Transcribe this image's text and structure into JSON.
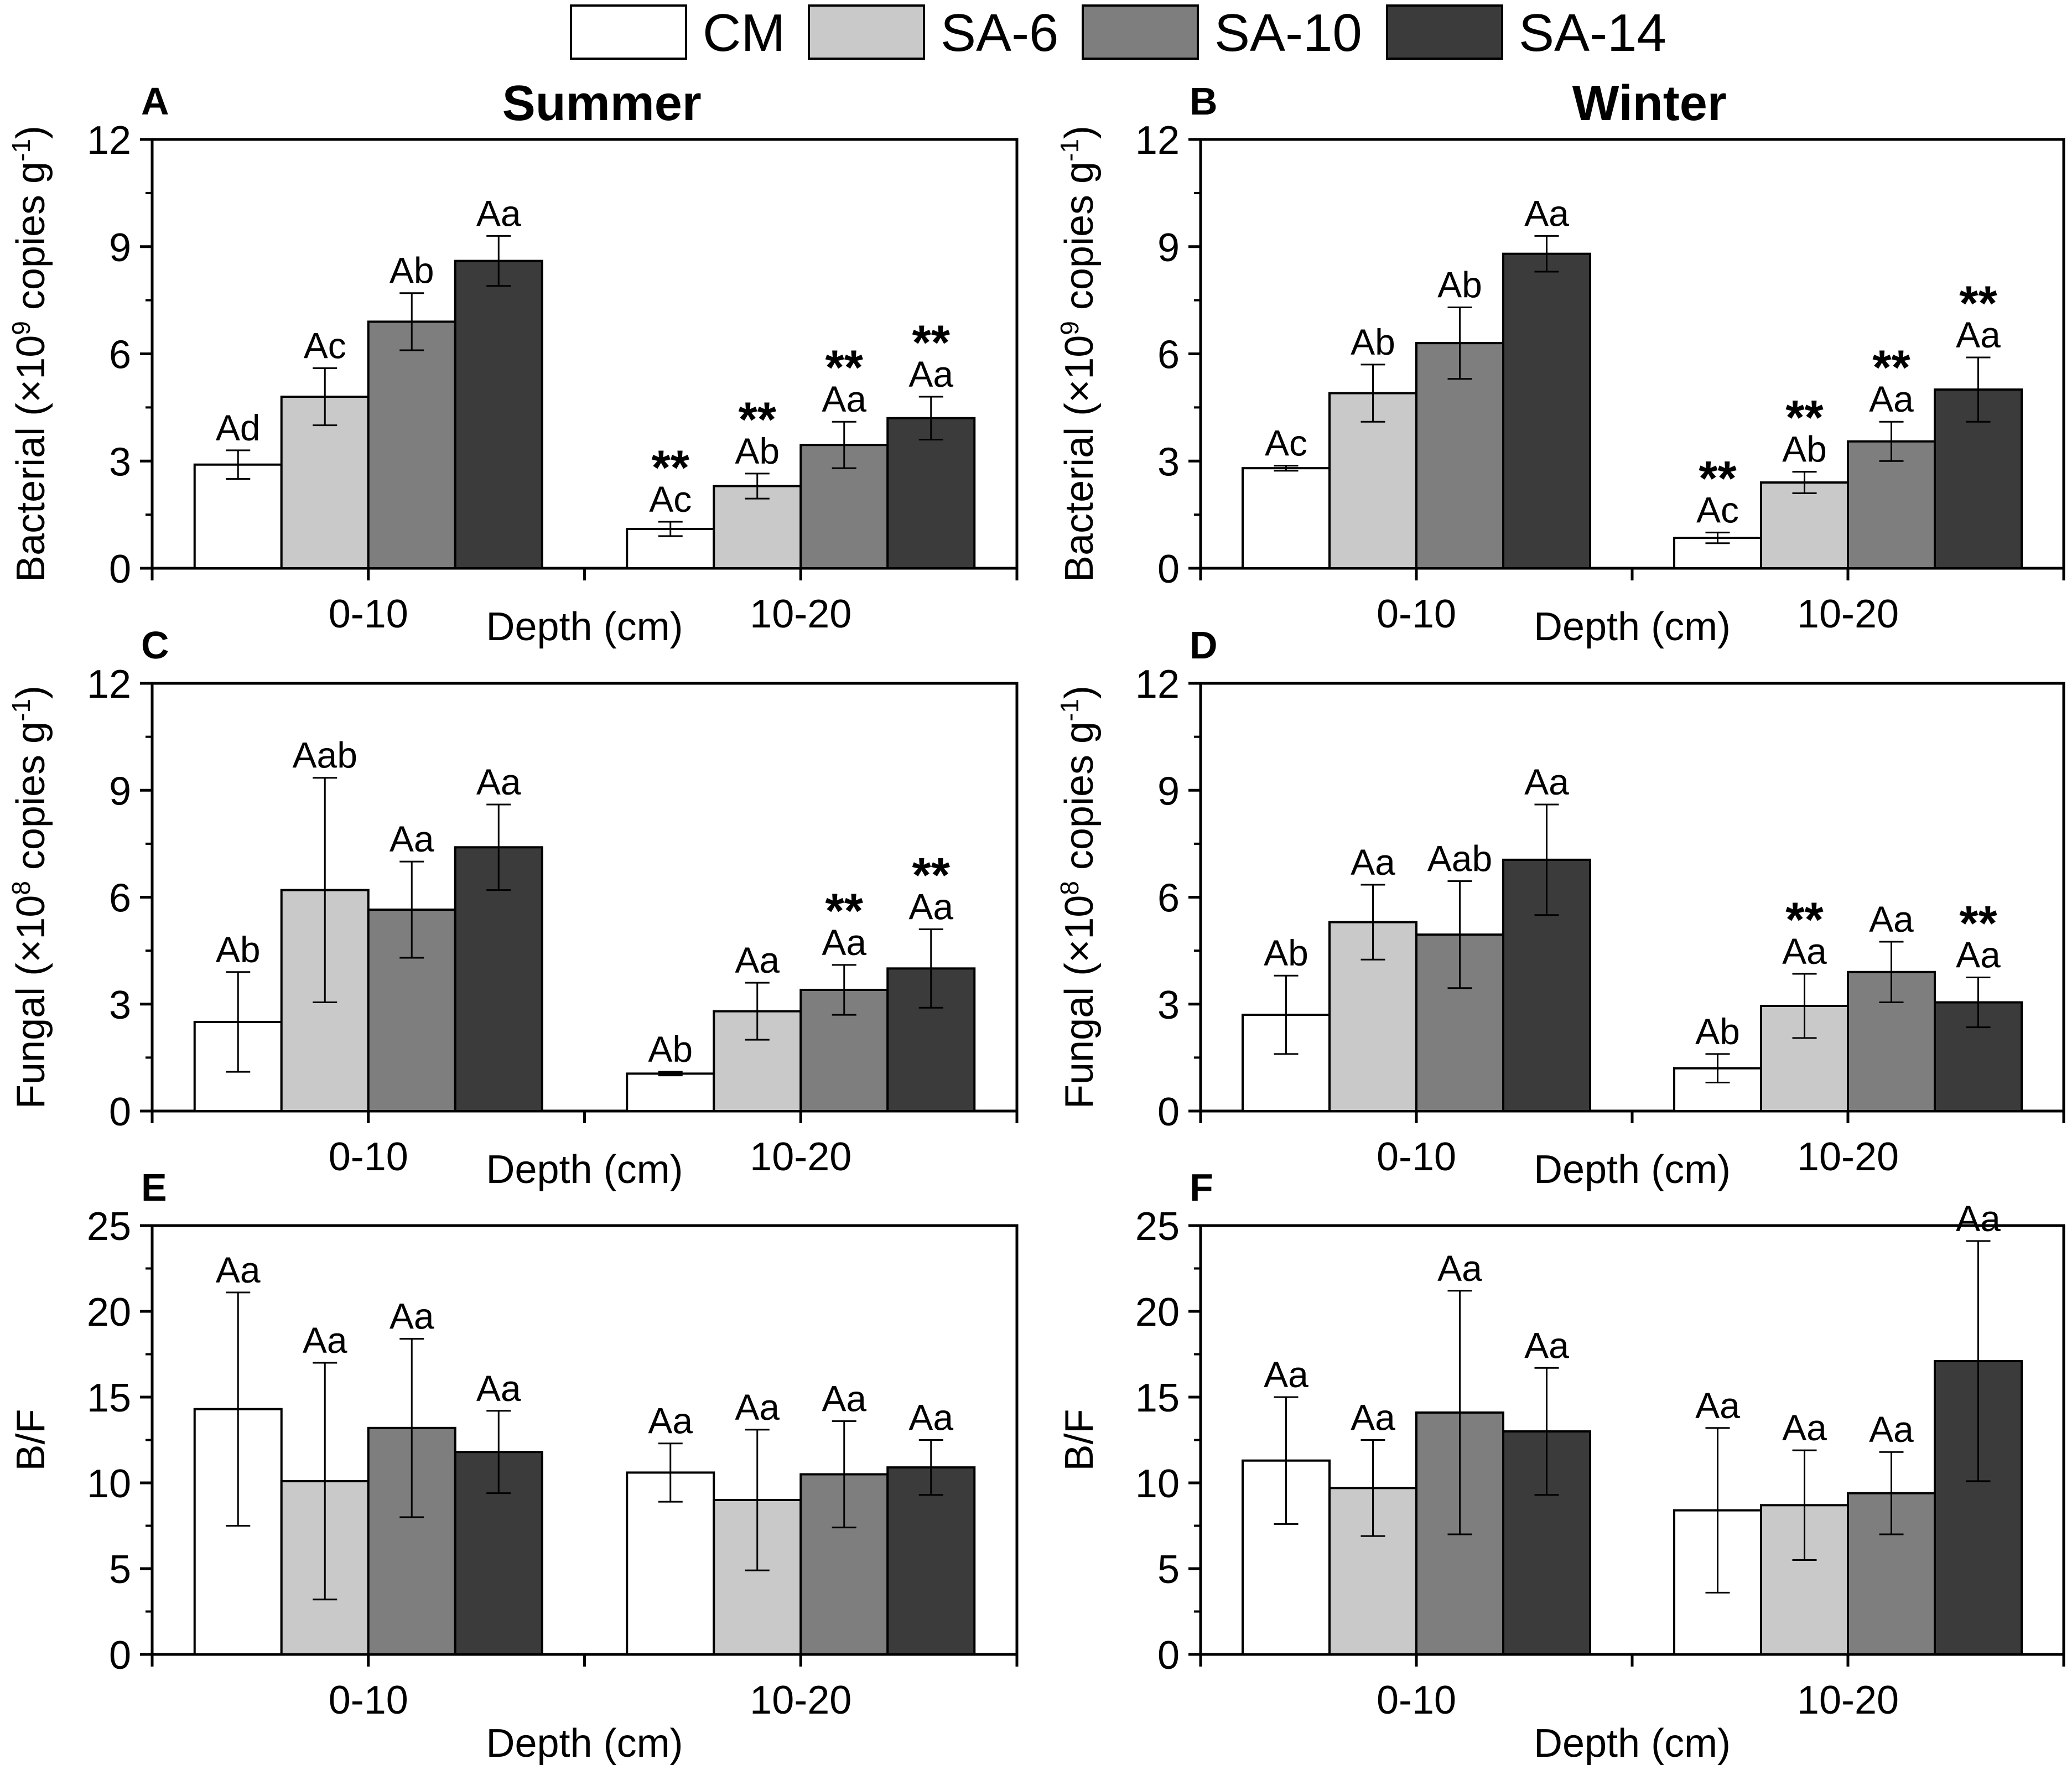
{
  "legend": [
    {
      "label": "CM",
      "color": "#ffffff"
    },
    {
      "label": "SA-6",
      "color": "#c9c9c9"
    },
    {
      "label": "SA-10",
      "color": "#7e7e7e"
    },
    {
      "label": "SA-14",
      "color": "#3b3b3b"
    }
  ],
  "chart_data": [
    {
      "id": "A",
      "panel_label": "A",
      "type": "bar",
      "title": "Summer",
      "ylabel_main": "Bacterial (×10",
      "ylabel_sup": "9",
      "ylabel_mid": " copies g",
      "ylabel_sup2": "-1",
      "ylabel_end": ")",
      "xlabel": "Depth (cm)",
      "xlabel_pos": "inline",
      "ylim": [
        0,
        12
      ],
      "yticks": [
        "0",
        "3",
        "6",
        "9",
        "12"
      ],
      "categories": [
        "0-10",
        "10-20"
      ],
      "series": [
        {
          "name": "CM",
          "values": [
            2.9,
            1.1
          ],
          "errors": [
            0.4,
            0.2
          ],
          "labels": [
            "Ad",
            "Ac"
          ],
          "stars": [
            "",
            "**"
          ]
        },
        {
          "name": "SA-6",
          "values": [
            4.8,
            2.3
          ],
          "errors": [
            0.8,
            0.35
          ],
          "labels": [
            "Ac",
            "Ab"
          ],
          "stars": [
            "",
            "**"
          ]
        },
        {
          "name": "SA-10",
          "values": [
            6.9,
            3.45
          ],
          "errors": [
            0.8,
            0.65
          ],
          "labels": [
            "Ab",
            "Aa"
          ],
          "stars": [
            "",
            "**"
          ]
        },
        {
          "name": "SA-14",
          "values": [
            8.6,
            4.2
          ],
          "errors": [
            0.7,
            0.6
          ],
          "labels": [
            "Aa",
            "Aa"
          ],
          "stars": [
            "",
            "**"
          ]
        }
      ]
    },
    {
      "id": "B",
      "panel_label": "B",
      "type": "bar",
      "title": "Winter",
      "ylabel_main": "Bacterial (×10",
      "ylabel_sup": "9",
      "ylabel_mid": " copies g",
      "ylabel_sup2": "-1",
      "ylabel_end": ")",
      "xlabel": "Depth (cm)",
      "xlabel_pos": "inline",
      "ylim": [
        0,
        12
      ],
      "yticks": [
        "0",
        "3",
        "6",
        "9",
        "12"
      ],
      "categories": [
        "0-10",
        "10-20"
      ],
      "series": [
        {
          "name": "CM",
          "values": [
            2.8,
            0.85
          ],
          "errors": [
            0.07,
            0.15
          ],
          "labels": [
            "Ac",
            "Ac"
          ],
          "stars": [
            "",
            "**"
          ]
        },
        {
          "name": "SA-6",
          "values": [
            4.9,
            2.4
          ],
          "errors": [
            0.8,
            0.3
          ],
          "labels": [
            "Ab",
            "Ab"
          ],
          "stars": [
            "",
            "**"
          ]
        },
        {
          "name": "SA-10",
          "values": [
            6.3,
            3.55
          ],
          "errors": [
            1.0,
            0.55
          ],
          "labels": [
            "Ab",
            "Aa"
          ],
          "stars": [
            "",
            "**"
          ]
        },
        {
          "name": "SA-14",
          "values": [
            8.8,
            5.0
          ],
          "errors": [
            0.5,
            0.9
          ],
          "labels": [
            "Aa",
            "Aa"
          ],
          "stars": [
            "",
            "**"
          ]
        }
      ]
    },
    {
      "id": "C",
      "panel_label": "C",
      "type": "bar",
      "title": "",
      "ylabel_main": "Fungal (×10",
      "ylabel_sup": "8",
      "ylabel_mid": " copies g",
      "ylabel_sup2": "-1",
      "ylabel_end": ")",
      "xlabel": "Depth (cm)",
      "xlabel_pos": "inline",
      "ylim": [
        0,
        12
      ],
      "yticks": [
        "0",
        "3",
        "6",
        "9",
        "12"
      ],
      "categories": [
        "0-10",
        "10-20"
      ],
      "series": [
        {
          "name": "CM",
          "values": [
            2.5,
            1.05
          ],
          "errors": [
            1.4,
            0.05
          ],
          "labels": [
            "Ab",
            "Ab"
          ],
          "stars": [
            "",
            ""
          ]
        },
        {
          "name": "SA-6",
          "values": [
            6.2,
            2.8
          ],
          "errors": [
            3.15,
            0.8
          ],
          "labels": [
            "Aab",
            "Aa"
          ],
          "stars": [
            "",
            ""
          ]
        },
        {
          "name": "SA-10",
          "values": [
            5.65,
            3.4
          ],
          "errors": [
            1.35,
            0.7
          ],
          "labels": [
            "Aa",
            "Aa"
          ],
          "stars": [
            "",
            "**"
          ]
        },
        {
          "name": "SA-14",
          "values": [
            7.4,
            4.0
          ],
          "errors": [
            1.2,
            1.1
          ],
          "labels": [
            "Aa",
            "Aa"
          ],
          "stars": [
            "",
            "**"
          ]
        }
      ]
    },
    {
      "id": "D",
      "panel_label": "D",
      "type": "bar",
      "title": "",
      "ylabel_main": "Fungal (×10",
      "ylabel_sup": "8",
      "ylabel_mid": " copies g",
      "ylabel_sup2": "-1",
      "ylabel_end": ")",
      "xlabel": "Depth (cm)",
      "xlabel_pos": "inline",
      "ylim": [
        0,
        12
      ],
      "yticks": [
        "0",
        "3",
        "6",
        "9",
        "12"
      ],
      "categories": [
        "0-10",
        "10-20"
      ],
      "series": [
        {
          "name": "CM",
          "values": [
            2.7,
            1.2
          ],
          "errors": [
            1.1,
            0.4
          ],
          "labels": [
            "Ab",
            "Ab"
          ],
          "stars": [
            "",
            ""
          ]
        },
        {
          "name": "SA-6",
          "values": [
            5.3,
            2.95
          ],
          "errors": [
            1.05,
            0.9
          ],
          "labels": [
            "Aa",
            "Aa"
          ],
          "stars": [
            "",
            "**"
          ]
        },
        {
          "name": "SA-10",
          "values": [
            4.95,
            3.9
          ],
          "errors": [
            1.5,
            0.85
          ],
          "labels": [
            "Aab",
            "Aa"
          ],
          "stars": [
            "",
            ""
          ]
        },
        {
          "name": "SA-14",
          "values": [
            7.05,
            3.05
          ],
          "errors": [
            1.55,
            0.7
          ],
          "labels": [
            "Aa",
            "Aa"
          ],
          "stars": [
            "",
            "**"
          ]
        }
      ]
    },
    {
      "id": "E",
      "panel_label": "E",
      "type": "bar",
      "title": "",
      "ylabel_main": "B/F",
      "ylabel_sup": "",
      "ylabel_mid": "",
      "ylabel_sup2": "",
      "ylabel_end": "",
      "xlabel": "Depth (cm)",
      "xlabel_pos": "below",
      "ylim": [
        0,
        25
      ],
      "yticks": [
        "0",
        "5",
        "10",
        "15",
        "20",
        "25"
      ],
      "categories": [
        "0-10",
        "10-20"
      ],
      "series": [
        {
          "name": "CM",
          "values": [
            14.3,
            10.6
          ],
          "errors": [
            6.8,
            1.7
          ],
          "labels": [
            "Aa",
            "Aa"
          ],
          "stars": [
            "",
            ""
          ]
        },
        {
          "name": "SA-6",
          "values": [
            10.1,
            9.0
          ],
          "errors": [
            6.9,
            4.1
          ],
          "labels": [
            "Aa",
            "Aa"
          ],
          "stars": [
            "",
            ""
          ]
        },
        {
          "name": "SA-10",
          "values": [
            13.2,
            10.5
          ],
          "errors": [
            5.2,
            3.1
          ],
          "labels": [
            "Aa",
            "Aa"
          ],
          "stars": [
            "",
            ""
          ]
        },
        {
          "name": "SA-14",
          "values": [
            11.8,
            10.9
          ],
          "errors": [
            2.4,
            1.6
          ],
          "labels": [
            "Aa",
            "Aa"
          ],
          "stars": [
            "",
            ""
          ]
        }
      ]
    },
    {
      "id": "F",
      "panel_label": "F",
      "type": "bar",
      "title": "",
      "ylabel_main": "B/F",
      "ylabel_sup": "",
      "ylabel_mid": "",
      "ylabel_sup2": "",
      "ylabel_end": "",
      "xlabel": "Depth (cm)",
      "xlabel_pos": "below",
      "ylim": [
        0,
        25
      ],
      "yticks": [
        "0",
        "5",
        "10",
        "15",
        "20",
        "25"
      ],
      "categories": [
        "0-10",
        "10-20"
      ],
      "series": [
        {
          "name": "CM",
          "values": [
            11.3,
            8.4
          ],
          "errors": [
            3.7,
            4.8
          ],
          "labels": [
            "Aa",
            "Aa"
          ],
          "stars": [
            "",
            ""
          ]
        },
        {
          "name": "SA-6",
          "values": [
            9.7,
            8.7
          ],
          "errors": [
            2.8,
            3.2
          ],
          "labels": [
            "Aa",
            "Aa"
          ],
          "stars": [
            "",
            ""
          ]
        },
        {
          "name": "SA-10",
          "values": [
            14.1,
            9.4
          ],
          "errors": [
            7.1,
            2.4
          ],
          "labels": [
            "Aa",
            "Aa"
          ],
          "stars": [
            "",
            ""
          ]
        },
        {
          "name": "SA-14",
          "values": [
            13.0,
            17.1
          ],
          "errors": [
            3.7,
            7.0
          ],
          "labels": [
            "Aa",
            "Aa"
          ],
          "stars": [
            "",
            ""
          ]
        }
      ]
    }
  ]
}
